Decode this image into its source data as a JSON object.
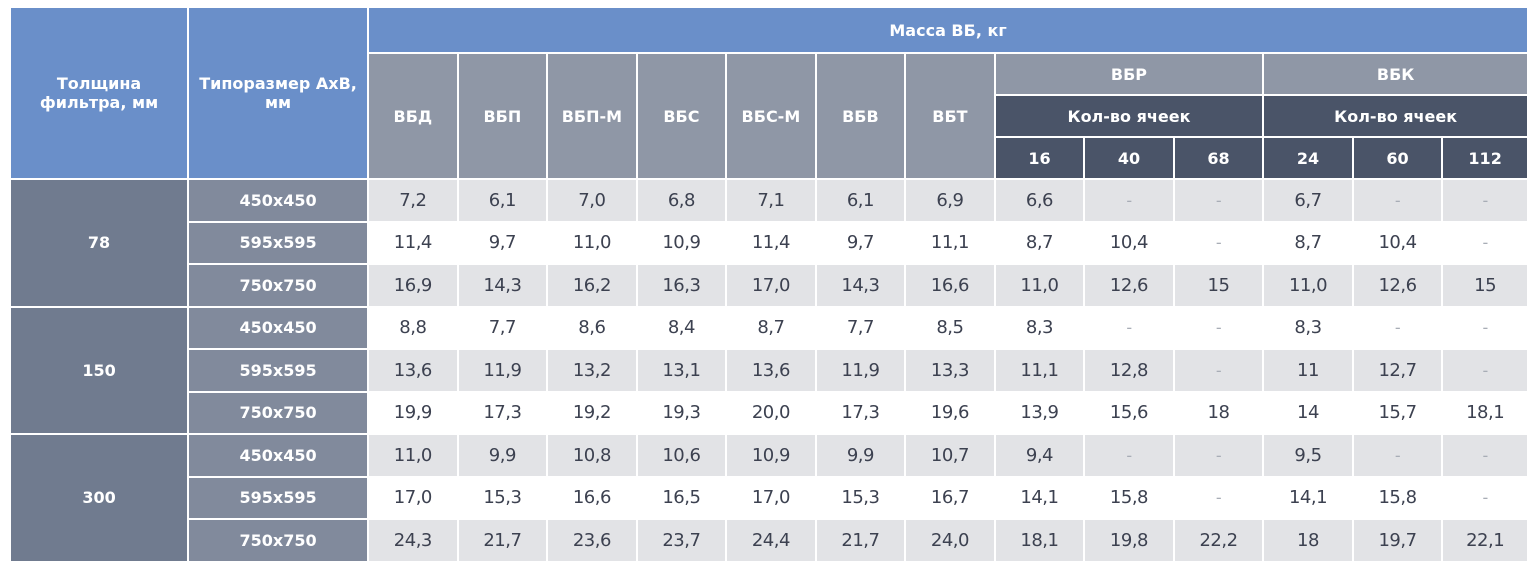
{
  "header": {
    "thickness": "Толщина фильтра, мм",
    "size": "Типоразмер АхВ, мм",
    "mass": "Масса ВБ, кг",
    "types": [
      "ВБД",
      "ВБП",
      "ВБП-М",
      "ВБС",
      "ВБС-М",
      "ВБВ",
      "ВБТ"
    ],
    "vbr": "ВБР",
    "vbk": "ВБК",
    "cells_label": "Кол-во ячеек",
    "vbr_cells": [
      "16",
      "40",
      "68"
    ],
    "vbk_cells": [
      "24",
      "60",
      "112"
    ]
  },
  "groups": [
    {
      "thickness": "78",
      "rows": [
        {
          "size": "450х450",
          "values": [
            "7,2",
            "6,1",
            "7,0",
            "6,8",
            "7,1",
            "6,1",
            "6,9",
            "6,6",
            "-",
            "-",
            "6,7",
            "-",
            "-"
          ]
        },
        {
          "size": "595х595",
          "values": [
            "11,4",
            "9,7",
            "11,0",
            "10,9",
            "11,4",
            "9,7",
            "11,1",
            "8,7",
            "10,4",
            "-",
            "8,7",
            "10,4",
            "-"
          ]
        },
        {
          "size": "750х750",
          "values": [
            "16,9",
            "14,3",
            "16,2",
            "16,3",
            "17,0",
            "14,3",
            "16,6",
            "11,0",
            "12,6",
            "15",
            "11,0",
            "12,6",
            "15"
          ]
        }
      ]
    },
    {
      "thickness": "150",
      "rows": [
        {
          "size": "450х450",
          "values": [
            "8,8",
            "7,7",
            "8,6",
            "8,4",
            "8,7",
            "7,7",
            "8,5",
            "8,3",
            "-",
            "-",
            "8,3",
            "-",
            "-"
          ]
        },
        {
          "size": "595х595",
          "values": [
            "13,6",
            "11,9",
            "13,2",
            "13,1",
            "13,6",
            "11,9",
            "13,3",
            "11,1",
            "12,8",
            "-",
            "11",
            "12,7",
            "-"
          ]
        },
        {
          "size": "750х750",
          "values": [
            "19,9",
            "17,3",
            "19,2",
            "19,3",
            "20,0",
            "17,3",
            "19,6",
            "13,9",
            "15,6",
            "18",
            "14",
            "15,7",
            "18,1"
          ]
        }
      ]
    },
    {
      "thickness": "300",
      "rows": [
        {
          "size": "450х450",
          "values": [
            "11,0",
            "9,9",
            "10,8",
            "10,6",
            "10,9",
            "9,9",
            "10,7",
            "9,4",
            "-",
            "-",
            "9,5",
            "-",
            "-"
          ]
        },
        {
          "size": "595х595",
          "values": [
            "17,0",
            "15,3",
            "16,6",
            "16,5",
            "17,0",
            "15,3",
            "16,7",
            "14,1",
            "15,8",
            "-",
            "14,1",
            "15,8",
            "-"
          ]
        },
        {
          "size": "750х750",
          "values": [
            "24,3",
            "21,7",
            "23,6",
            "23,7",
            "24,4",
            "21,7",
            "24,0",
            "18,1",
            "19,8",
            "22,2",
            "18",
            "19,7",
            "22,1"
          ]
        }
      ]
    }
  ]
}
